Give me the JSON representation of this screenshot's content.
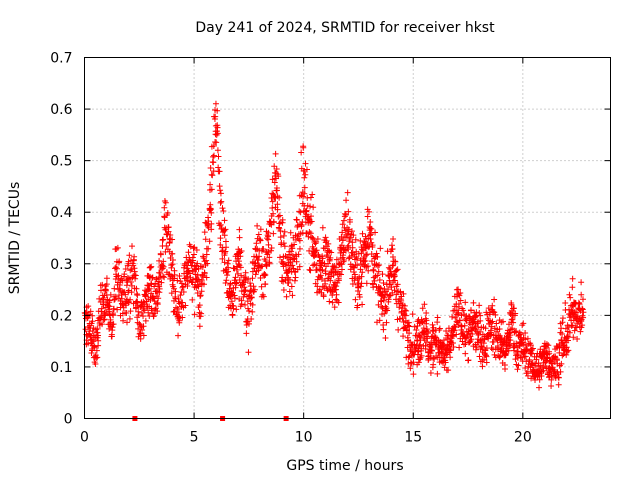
{
  "chart_data": {
    "type": "scatter",
    "title": "Day 241 of 2024, SRMTID for receiver hkst",
    "xlabel": "GPS time / hours",
    "ylabel": "SRMTID / TECUs",
    "xlim": [
      0,
      24
    ],
    "ylim": [
      0,
      0.7
    ],
    "x_ticks": [
      0,
      5,
      10,
      15,
      20
    ],
    "x_tick_labels": [
      "0",
      "5",
      "10",
      "15",
      "20"
    ],
    "y_ticks": [
      0,
      0.1,
      0.2,
      0.3,
      0.4,
      0.5,
      0.6,
      0.7
    ],
    "y_tick_labels": [
      "0",
      "0.1",
      "0.2",
      "0.3",
      "0.4",
      "0.5",
      "0.6",
      "0.7"
    ],
    "grid": true,
    "marker": "+",
    "color": "#ff0000",
    "series": [
      {
        "name": "SRMTID",
        "x": [
          0.0,
          0.25,
          0.5,
          0.75,
          1.0,
          1.25,
          1.5,
          1.75,
          2.0,
          2.25,
          2.5,
          2.75,
          3.0,
          3.25,
          3.5,
          3.75,
          4.0,
          4.25,
          4.5,
          4.75,
          5.0,
          5.25,
          5.5,
          5.75,
          6.0,
          6.25,
          6.5,
          6.75,
          7.0,
          7.25,
          7.5,
          7.75,
          8.0,
          8.25,
          8.5,
          8.75,
          9.0,
          9.25,
          9.5,
          9.75,
          10.0,
          10.25,
          10.5,
          10.75,
          11.0,
          11.25,
          11.5,
          11.75,
          12.0,
          12.25,
          12.5,
          12.75,
          13.0,
          13.25,
          13.5,
          13.75,
          14.0,
          14.25,
          14.5,
          14.75,
          15.0,
          15.25,
          15.5,
          15.75,
          16.0,
          16.25,
          16.5,
          16.75,
          17.0,
          17.25,
          17.5,
          17.75,
          18.0,
          18.25,
          18.5,
          18.75,
          19.0,
          19.25,
          19.5,
          19.75,
          20.0,
          20.25,
          20.5,
          20.75,
          21.0,
          21.25,
          21.5,
          21.75,
          22.0,
          22.25,
          22.5,
          22.75
        ],
        "y": [
          0.2,
          0.17,
          0.14,
          0.21,
          0.24,
          0.19,
          0.3,
          0.22,
          0.26,
          0.29,
          0.17,
          0.22,
          0.26,
          0.23,
          0.31,
          0.37,
          0.29,
          0.2,
          0.25,
          0.3,
          0.28,
          0.24,
          0.31,
          0.42,
          0.6,
          0.36,
          0.28,
          0.22,
          0.3,
          0.26,
          0.2,
          0.29,
          0.33,
          0.27,
          0.38,
          0.46,
          0.32,
          0.28,
          0.3,
          0.36,
          0.45,
          0.38,
          0.32,
          0.29,
          0.3,
          0.28,
          0.25,
          0.33,
          0.38,
          0.3,
          0.27,
          0.33,
          0.36,
          0.28,
          0.24,
          0.22,
          0.3,
          0.25,
          0.2,
          0.16,
          0.14,
          0.15,
          0.19,
          0.12,
          0.16,
          0.13,
          0.12,
          0.15,
          0.21,
          0.18,
          0.16,
          0.19,
          0.16,
          0.14,
          0.2,
          0.16,
          0.15,
          0.13,
          0.2,
          0.13,
          0.14,
          0.12,
          0.1,
          0.09,
          0.13,
          0.11,
          0.1,
          0.14,
          0.16,
          0.22,
          0.2,
          0.21
        ],
        "spread": [
          0.04,
          0.05,
          0.05,
          0.05,
          0.05,
          0.05,
          0.06,
          0.05,
          0.06,
          0.06,
          0.05,
          0.05,
          0.06,
          0.05,
          0.06,
          0.07,
          0.07,
          0.05,
          0.06,
          0.06,
          0.06,
          0.05,
          0.06,
          0.08,
          0.05,
          0.07,
          0.06,
          0.05,
          0.06,
          0.06,
          0.05,
          0.06,
          0.07,
          0.06,
          0.07,
          0.06,
          0.07,
          0.06,
          0.06,
          0.07,
          0.07,
          0.07,
          0.06,
          0.06,
          0.07,
          0.06,
          0.06,
          0.06,
          0.07,
          0.06,
          0.06,
          0.07,
          0.07,
          0.06,
          0.06,
          0.05,
          0.06,
          0.06,
          0.05,
          0.05,
          0.05,
          0.05,
          0.05,
          0.04,
          0.05,
          0.05,
          0.04,
          0.05,
          0.05,
          0.05,
          0.05,
          0.05,
          0.05,
          0.05,
          0.05,
          0.05,
          0.05,
          0.04,
          0.05,
          0.04,
          0.04,
          0.04,
          0.04,
          0.04,
          0.04,
          0.04,
          0.04,
          0.05,
          0.05,
          0.05,
          0.04,
          0.04
        ]
      },
      {
        "name": "zero-points",
        "x": [
          2.3,
          6.3,
          9.2
        ],
        "y": [
          0,
          0,
          0
        ]
      }
    ]
  }
}
